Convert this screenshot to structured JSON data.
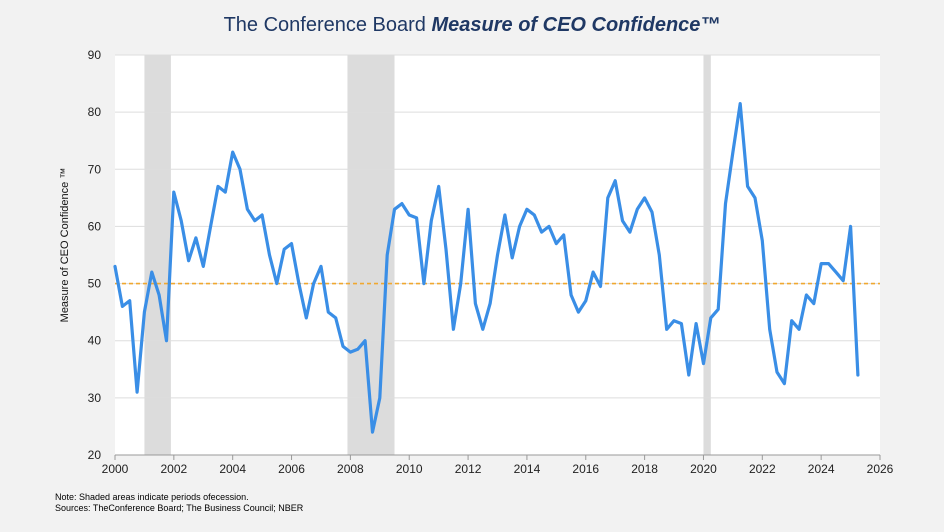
{
  "header": {
    "title_plain": "The Conference Board ",
    "title_emph": "Measure of CEO Confidence™"
  },
  "notes": {
    "note": "Note: Shaded areas indicate periods ofecession.",
    "sources": "Sources: TheConference Board; The Business Council; NBER"
  },
  "colors": {
    "line": "#3a8ee6",
    "reference": "#f0a830",
    "recession": "#dcdcdc",
    "grid": "#dddddd",
    "plot_bg": "#ffffff"
  },
  "chart_data": {
    "type": "line",
    "title": "",
    "xlabel": "",
    "ylabel": "Measure of CEO Confidence ™",
    "xlim": [
      2000,
      2026
    ],
    "ylim": [
      20,
      90
    ],
    "x_ticks": [
      2000,
      2002,
      2004,
      2006,
      2008,
      2010,
      2012,
      2014,
      2016,
      2018,
      2020,
      2022,
      2024,
      2026
    ],
    "y_ticks": [
      20,
      30,
      40,
      50,
      60,
      70,
      80,
      90
    ],
    "grid": true,
    "reference_line": {
      "y": 50,
      "style": "dashed"
    },
    "recessions": [
      {
        "start": 2001.0,
        "end": 2001.9
      },
      {
        "start": 2007.9,
        "end": 2009.5
      },
      {
        "start": 2020.0,
        "end": 2020.25
      }
    ],
    "series": [
      {
        "x": [
          2000.0,
          2000.25,
          2000.5,
          2000.75,
          2001.0,
          2001.25,
          2001.5,
          2001.75,
          2002.0,
          2002.25,
          2002.5,
          2002.75,
          2003.0,
          2003.25,
          2003.5,
          2003.75,
          2004.0,
          2004.25,
          2004.5,
          2004.75,
          2005.0,
          2005.25,
          2005.5,
          2005.75,
          2006.0,
          2006.25,
          2006.5,
          2006.75,
          2007.0,
          2007.25,
          2007.5,
          2007.75,
          2008.0,
          2008.25,
          2008.5,
          2008.75,
          2009.0,
          2009.25,
          2009.5,
          2009.75,
          2010.0,
          2010.25,
          2010.5,
          2010.75,
          2011.0,
          2011.25,
          2011.5,
          2011.75,
          2012.0,
          2012.25,
          2012.5,
          2012.75,
          2013.0,
          2013.25,
          2013.5,
          2013.75,
          2014.0,
          2014.25,
          2014.5,
          2014.75,
          2015.0,
          2015.25,
          2015.5,
          2015.75,
          2016.0,
          2016.25,
          2016.5,
          2016.75,
          2017.0,
          2017.25,
          2017.5,
          2017.75,
          2018.0,
          2018.25,
          2018.5,
          2018.75,
          2019.0,
          2019.25,
          2019.5,
          2019.75,
          2020.0,
          2020.25,
          2020.5,
          2020.75,
          2021.0,
          2021.25,
          2021.5,
          2021.75,
          2022.0,
          2022.25,
          2022.5,
          2022.75,
          2023.0,
          2023.25,
          2023.5,
          2023.75,
          2024.0,
          2024.25,
          2024.5,
          2024.75,
          2025.0,
          2025.25
        ],
        "values": [
          53,
          46,
          47,
          31,
          45,
          52,
          48,
          40,
          66,
          61,
          54,
          58,
          53,
          60,
          67,
          66,
          73,
          70,
          63,
          61,
          62,
          55,
          50,
          56,
          57,
          50,
          44,
          50,
          53,
          45,
          44,
          39,
          38,
          38.5,
          40,
          24,
          30,
          55,
          63,
          64,
          62,
          61.5,
          50,
          61,
          67,
          56,
          42,
          50,
          63,
          46.5,
          42,
          46.5,
          55,
          62,
          54.5,
          60,
          63,
          62,
          59,
          60,
          57,
          58.5,
          48,
          45,
          47,
          52,
          49.5,
          65,
          68,
          61,
          59,
          63,
          65,
          62.5,
          55,
          42,
          43.5,
          43,
          34,
          43,
          36,
          44,
          45.5,
          64,
          73,
          81.5,
          67,
          65,
          57.5,
          42,
          34.5,
          32.5,
          43.5,
          42,
          48,
          46.5,
          53.5,
          53.5,
          52,
          50.5,
          60,
          34
        ]
      }
    ]
  }
}
